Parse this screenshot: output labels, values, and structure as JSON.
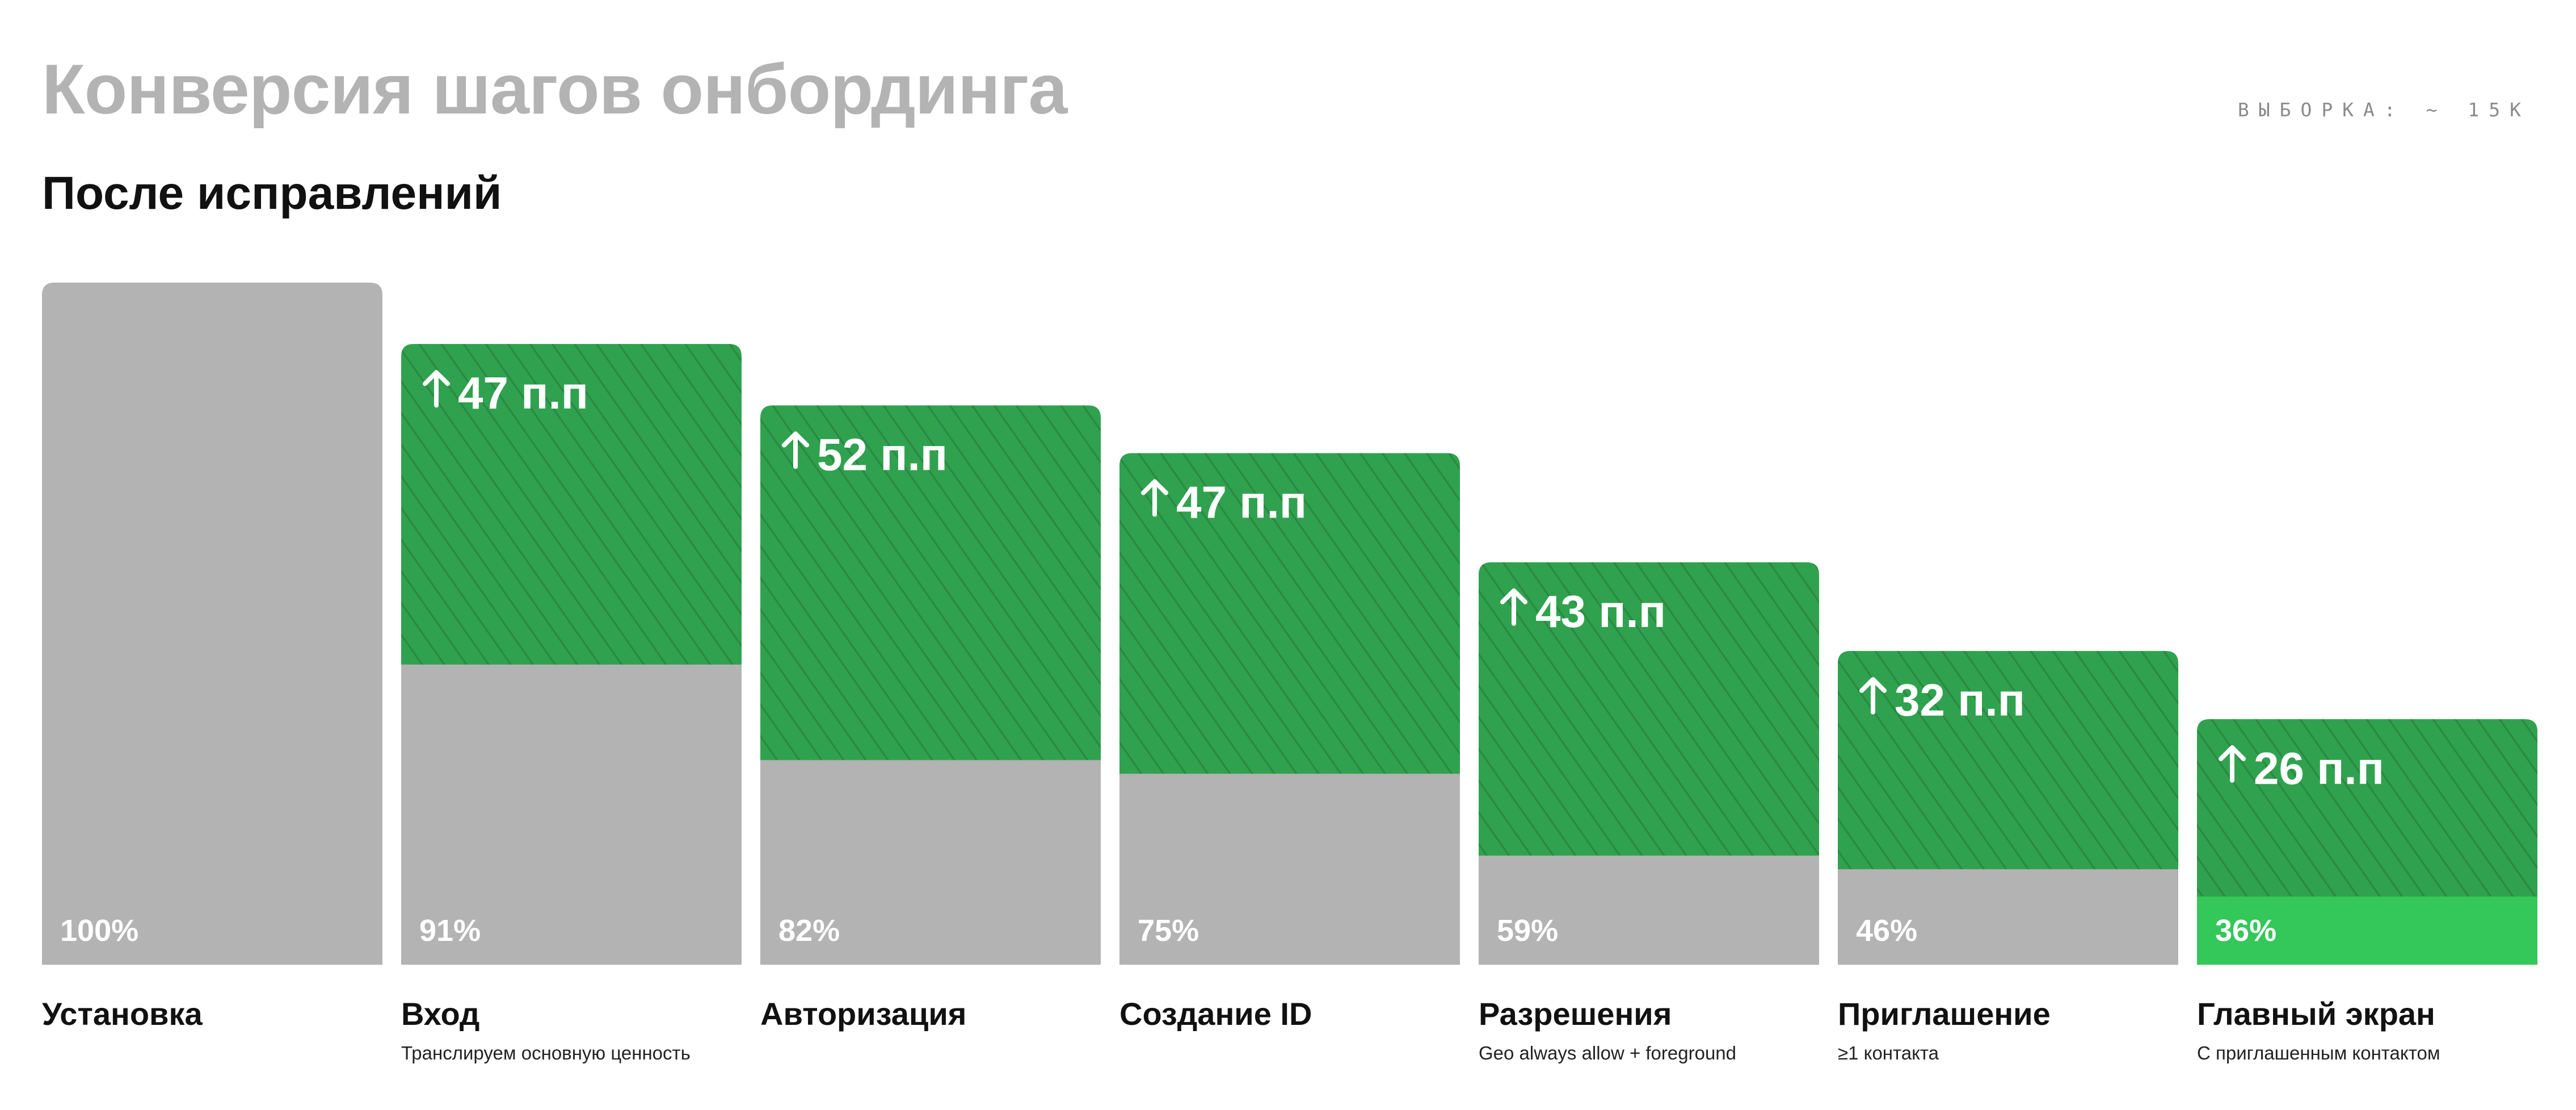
{
  "header": {
    "title": "Конверсия шагов онбординга",
    "sample": "ВЫБОРКА: ~ 15K",
    "subtitle": "После исправлений"
  },
  "colors": {
    "base": "#b3b3b3",
    "improvement": "#30a24f",
    "final_step": "#34c759",
    "title": "#b3b3b3"
  },
  "chart_data": {
    "type": "bar",
    "subtype": "stacked-funnel",
    "title": "Конверсия шагов онбординга",
    "subtitle": "После исправлений",
    "categories": [
      "Установка",
      "Вход",
      "Авторизация",
      "Создание ID",
      "Разрешения",
      "Приглашение",
      "Главный экран"
    ],
    "notes": [
      "",
      "Транслируем основную ценность",
      "",
      "",
      "Geo always allow + foreground",
      "≥1 контакта",
      "С приглашенным контактом"
    ],
    "series": [
      {
        "values": [
          100,
          91,
          82,
          75,
          59,
          46,
          36
        ],
        "labels": [
          "100%",
          "91%",
          "82%",
          "75%",
          "59%",
          "46%",
          "36%"
        ]
      },
      {
        "values": [
          0,
          47,
          52,
          47,
          43,
          32,
          26
        ],
        "labels": [
          "",
          "47 п.п",
          "52 п.п",
          "47 п.п",
          "43 п.п",
          "32 п.п",
          "26 п.п"
        ]
      }
    ],
    "bars_total": [
      100,
      91,
      82,
      75,
      59,
      46,
      36
    ],
    "bars_before": [
      100,
      44,
      30,
      28,
      16,
      14,
      10
    ],
    "ylim": [
      0,
      100
    ],
    "highlight_last": true,
    "xlabel": "",
    "ylabel": "",
    "grid": false,
    "legend": "none"
  }
}
